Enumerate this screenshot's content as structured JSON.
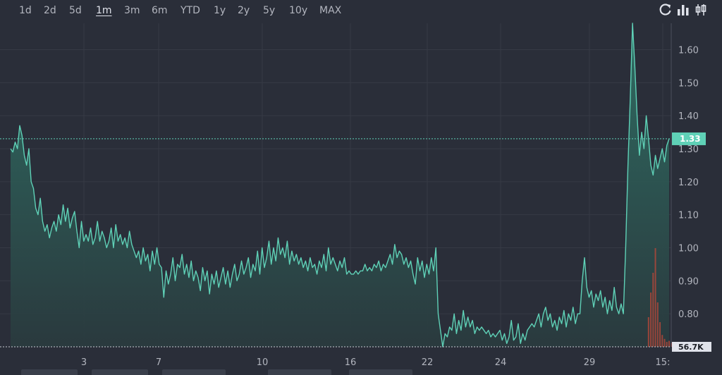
{
  "toolbar": {
    "ranges": [
      {
        "label": "1d",
        "active": false
      },
      {
        "label": "2d",
        "active": false
      },
      {
        "label": "5d",
        "active": false
      },
      {
        "label": "1m",
        "active": true
      },
      {
        "label": "3m",
        "active": false
      },
      {
        "label": "6m",
        "active": false
      },
      {
        "label": "YTD",
        "active": false
      },
      {
        "label": "1y",
        "active": false
      },
      {
        "label": "2y",
        "active": false
      },
      {
        "label": "5y",
        "active": false
      },
      {
        "label": "10y",
        "active": false
      },
      {
        "label": "MAX",
        "active": false
      }
    ],
    "icons": [
      "refresh-icon",
      "bar-chart-icon",
      "candlestick-icon"
    ]
  },
  "colors": {
    "background": "#2a2e39",
    "line": "#5fd1b7",
    "area_top": "#2f6f64",
    "area_bottom": "#2a3a3e",
    "grid": "#363a45",
    "volume": "#b5473a",
    "price_label_bg": "#5fd1b7"
  },
  "chart_data": {
    "type": "area",
    "title": "",
    "xlabel": "",
    "ylabel": "",
    "ylim": [
      0.7,
      1.68
    ],
    "y_ticks": [
      "1.60",
      "1.50",
      "1.40",
      "1.30",
      "1.20",
      "1.10",
      "1.00",
      "0.90",
      "0.80"
    ],
    "x_tick_labels": [
      "3",
      "7",
      "10",
      "16",
      "22",
      "24",
      "29",
      "15:"
    ],
    "current_price": "1.33",
    "volume_label": "56.7K",
    "grid": true,
    "series": [
      {
        "values": [
          1.3,
          1.29,
          1.32,
          1.3,
          1.37,
          1.34,
          1.28,
          1.25,
          1.3,
          1.2,
          1.18,
          1.12,
          1.1,
          1.15,
          1.08,
          1.05,
          1.07,
          1.03,
          1.06,
          1.08,
          1.05,
          1.1,
          1.07,
          1.13,
          1.08,
          1.12,
          1.06,
          1.09,
          1.11,
          1.05,
          1.0,
          1.08,
          1.02,
          1.04,
          1.02,
          1.06,
          1.01,
          1.03,
          1.08,
          1.02,
          1.05,
          1.03,
          1.0,
          1.02,
          1.06,
          1.0,
          1.07,
          1.02,
          1.04,
          1.01,
          1.03,
          1.0,
          1.05,
          1.01,
          0.99,
          0.97,
          0.99,
          0.95,
          1.0,
          0.96,
          0.98,
          0.93,
          0.99,
          0.95,
          1.0,
          0.95,
          0.94,
          0.85,
          0.93,
          0.89,
          0.92,
          0.97,
          0.9,
          0.95,
          0.94,
          0.98,
          0.92,
          0.95,
          0.91,
          0.96,
          0.9,
          0.93,
          0.91,
          0.87,
          0.94,
          0.9,
          0.93,
          0.86,
          0.92,
          0.89,
          0.93,
          0.88,
          0.91,
          0.94,
          0.89,
          0.93,
          0.88,
          0.92,
          0.95,
          0.9,
          0.92,
          0.96,
          0.92,
          0.94,
          0.97,
          0.91,
          0.95,
          0.93,
          0.99,
          0.92,
          1.0,
          0.94,
          0.97,
          1.02,
          0.95,
          1.0,
          0.96,
          1.03,
          0.98,
          1.0,
          0.97,
          1.02,
          0.95,
          0.99,
          0.96,
          0.98,
          0.95,
          0.97,
          0.94,
          0.96,
          0.93,
          0.97,
          0.94,
          0.95,
          0.92,
          0.96,
          0.94,
          0.98,
          0.93,
          1.0,
          0.95,
          0.97,
          0.95,
          0.93,
          0.96,
          0.94,
          0.97,
          0.92,
          0.93,
          0.92,
          0.92,
          0.93,
          0.92,
          0.93,
          0.93,
          0.95,
          0.93,
          0.94,
          0.93,
          0.95,
          0.94,
          0.96,
          0.93,
          0.95,
          0.94,
          0.96,
          0.98,
          0.95,
          1.01,
          0.97,
          0.99,
          0.98,
          0.95,
          0.97,
          0.94,
          0.96,
          0.92,
          0.89,
          0.97,
          0.93,
          0.96,
          0.91,
          0.95,
          0.92,
          0.97,
          0.93,
          1.0,
          0.8,
          0.75,
          0.7,
          0.74,
          0.73,
          0.76,
          0.75,
          0.8,
          0.74,
          0.78,
          0.75,
          0.81,
          0.76,
          0.79,
          0.76,
          0.78,
          0.74,
          0.76,
          0.75,
          0.76,
          0.75,
          0.74,
          0.75,
          0.73,
          0.74,
          0.73,
          0.74,
          0.75,
          0.72,
          0.74,
          0.71,
          0.73,
          0.78,
          0.72,
          0.73,
          0.77,
          0.71,
          0.74,
          0.72,
          0.75,
          0.76,
          0.77,
          0.76,
          0.78,
          0.8,
          0.76,
          0.8,
          0.82,
          0.78,
          0.8,
          0.76,
          0.78,
          0.75,
          0.79,
          0.77,
          0.81,
          0.76,
          0.8,
          0.78,
          0.82,
          0.77,
          0.8,
          0.8,
          0.9,
          0.97,
          0.88,
          0.85,
          0.87,
          0.82,
          0.86,
          0.84,
          0.87,
          0.82,
          0.85,
          0.8,
          0.84,
          0.81,
          0.88,
          0.82,
          0.8,
          0.83,
          0.8,
          1.0,
          1.25,
          1.45,
          1.68,
          1.55,
          1.4,
          1.28,
          1.35,
          1.3,
          1.4,
          1.33,
          1.25,
          1.22,
          1.28,
          1.24,
          1.27,
          1.3,
          1.26,
          1.31,
          1.33
        ]
      }
    ],
    "volume": {
      "start_index": 279,
      "values": [
        0.3,
        0.55,
        0.75,
        1.0,
        0.45,
        0.25,
        0.12,
        0.08,
        0.05,
        0.06,
        0.04,
        0.03,
        0.05,
        0.03,
        0.02,
        0.04,
        0.03,
        0.02
      ]
    }
  }
}
